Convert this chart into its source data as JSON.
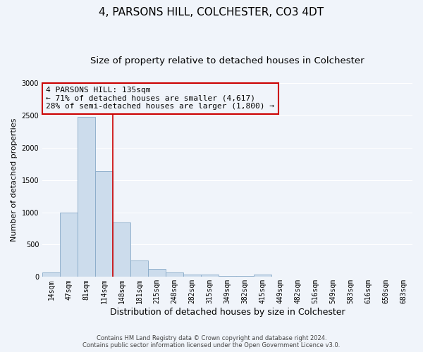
{
  "title": "4, PARSONS HILL, COLCHESTER, CO3 4DT",
  "subtitle": "Size of property relative to detached houses in Colchester",
  "xlabel": "Distribution of detached houses by size in Colchester",
  "ylabel": "Number of detached properties",
  "bar_color": "#ccdcec",
  "bar_edge_color": "#88aac8",
  "categories": [
    "14sqm",
    "47sqm",
    "81sqm",
    "114sqm",
    "148sqm",
    "181sqm",
    "215sqm",
    "248sqm",
    "282sqm",
    "315sqm",
    "349sqm",
    "382sqm",
    "415sqm",
    "449sqm",
    "482sqm",
    "516sqm",
    "549sqm",
    "583sqm",
    "616sqm",
    "650sqm",
    "683sqm"
  ],
  "values": [
    75,
    1000,
    2475,
    1640,
    840,
    260,
    120,
    65,
    40,
    35,
    15,
    10,
    40,
    5,
    5,
    5,
    5,
    5,
    5,
    5,
    5
  ],
  "vline_x": 3.5,
  "vline_color": "#cc0000",
  "annotation_text": "4 PARSONS HILL: 135sqm\n← 71% of detached houses are smaller (4,617)\n28% of semi-detached houses are larger (1,800) →",
  "annotation_box_color": "#cc0000",
  "ylim": [
    0,
    3000
  ],
  "yticks": [
    0,
    500,
    1000,
    1500,
    2000,
    2500,
    3000
  ],
  "footer_line1": "Contains HM Land Registry data © Crown copyright and database right 2024.",
  "footer_line2": "Contains public sector information licensed under the Open Government Licence v3.0.",
  "bg_color": "#f0f4fa",
  "grid_color": "#ffffff",
  "title_fontsize": 11,
  "subtitle_fontsize": 9.5,
  "xlabel_fontsize": 9,
  "ylabel_fontsize": 8,
  "tick_fontsize": 7,
  "annotation_fontsize": 8,
  "footer_fontsize": 6
}
